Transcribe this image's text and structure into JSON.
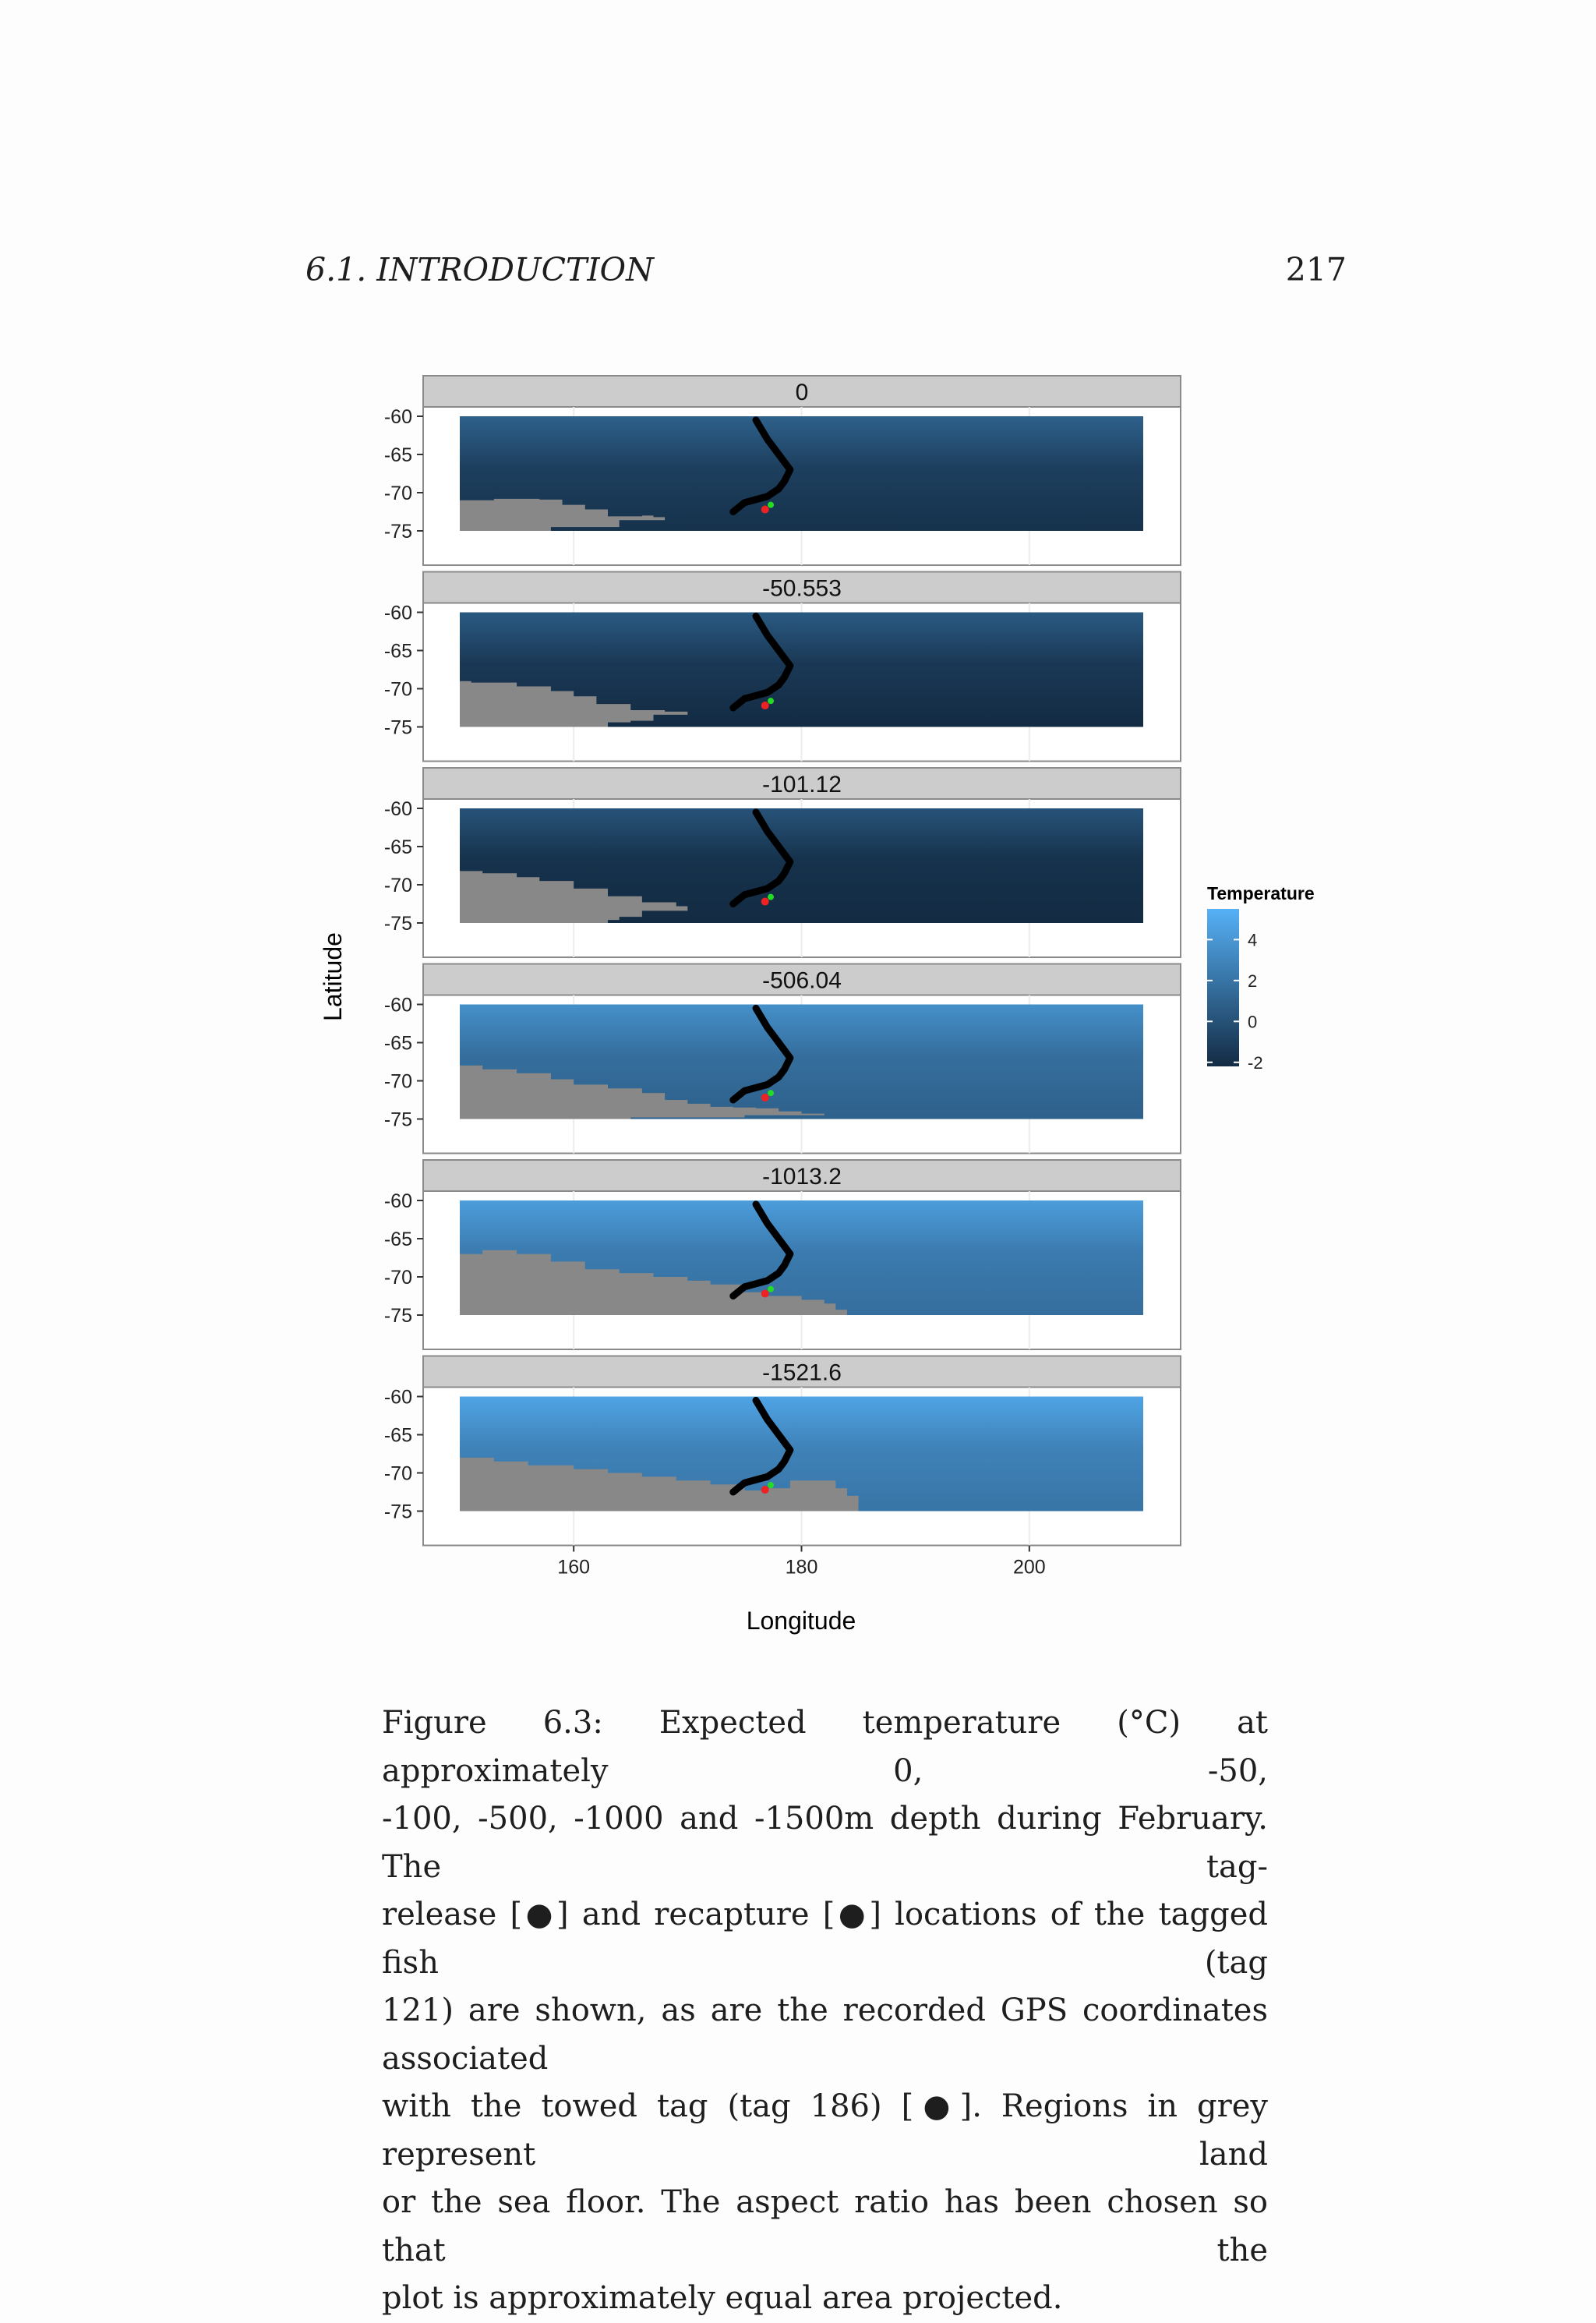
{
  "page": {
    "running_header": "6.1.  INTRODUCTION",
    "page_number": "217"
  },
  "chart_data": {
    "type": "heatmap",
    "panels": [
      {
        "label": "0",
        "depth": 0,
        "brightness": 0.1,
        "land": [
          [
            150,
            -71
          ],
          [
            153,
            -70.8
          ],
          [
            157,
            -70.9
          ],
          [
            159,
            -71.6
          ],
          [
            161,
            -72.2
          ],
          [
            163,
            -73.1
          ],
          [
            166,
            -73
          ],
          [
            167,
            -73.2
          ],
          [
            168,
            -73.6
          ],
          [
            164,
            -74.5
          ],
          [
            158,
            -75
          ]
        ]
      },
      {
        "label": "-50.553",
        "depth": -50.553,
        "brightness": 0.05,
        "land": [
          [
            150,
            -69
          ],
          [
            151,
            -69.2
          ],
          [
            155,
            -69.7
          ],
          [
            158,
            -70.3
          ],
          [
            160,
            -71
          ],
          [
            162,
            -72
          ],
          [
            165,
            -72.8
          ],
          [
            168,
            -73
          ],
          [
            170,
            -73.4
          ],
          [
            167,
            -74.2
          ],
          [
            165,
            -74.4
          ],
          [
            163,
            -75
          ]
        ]
      },
      {
        "label": "-101.12",
        "depth": -101.12,
        "brightness": 0.0,
        "land": [
          [
            150,
            -68.2
          ],
          [
            152,
            -68.5
          ],
          [
            155,
            -69
          ],
          [
            157,
            -69.5
          ],
          [
            160,
            -70.5
          ],
          [
            163,
            -71.5
          ],
          [
            166,
            -72.3
          ],
          [
            169,
            -72.8
          ],
          [
            170,
            -73.4
          ],
          [
            166,
            -74.2
          ],
          [
            164,
            -74.6
          ],
          [
            163,
            -75
          ]
        ]
      },
      {
        "label": "-506.04",
        "depth": -506.04,
        "brightness": 0.45,
        "land": [
          [
            150,
            -68
          ],
          [
            152,
            -68.5
          ],
          [
            155,
            -69
          ],
          [
            158,
            -69.8
          ],
          [
            160,
            -70.5
          ],
          [
            163,
            -71
          ],
          [
            166,
            -71.6
          ],
          [
            168,
            -72.5
          ],
          [
            170,
            -73
          ],
          [
            172,
            -73.4
          ],
          [
            174,
            -73.5
          ],
          [
            176,
            -73.6
          ],
          [
            178,
            -74
          ],
          [
            180,
            -74.3
          ],
          [
            182,
            -74.5
          ],
          [
            175,
            -74.8
          ],
          [
            165,
            -75
          ]
        ]
      },
      {
        "label": "-1013.2",
        "depth": -1013.2,
        "brightness": 0.55,
        "land": [
          [
            150,
            -67
          ],
          [
            152,
            -66.5
          ],
          [
            155,
            -67
          ],
          [
            158,
            -68
          ],
          [
            161,
            -69
          ],
          [
            164,
            -69.5
          ],
          [
            167,
            -70
          ],
          [
            170,
            -70.5
          ],
          [
            172,
            -71
          ],
          [
            175,
            -72
          ],
          [
            177,
            -72.5
          ],
          [
            180,
            -73
          ],
          [
            182,
            -73.5
          ],
          [
            183,
            -74.3
          ],
          [
            184,
            -75
          ]
        ]
      },
      {
        "label": "-1521.6",
        "depth": -1521.6,
        "brightness": 0.6,
        "land": [
          [
            150,
            -68
          ],
          [
            153,
            -68.5
          ],
          [
            156,
            -69
          ],
          [
            160,
            -69.5
          ],
          [
            163,
            -70
          ],
          [
            166,
            -70.5
          ],
          [
            169,
            -71
          ],
          [
            172,
            -71.5
          ],
          [
            175,
            -72.3
          ],
          [
            177,
            -72
          ],
          [
            179,
            -71
          ],
          [
            181,
            -71
          ],
          [
            183,
            -72
          ],
          [
            184,
            -73
          ],
          [
            185,
            -75
          ]
        ]
      }
    ],
    "x_ticks": [
      160,
      180,
      200
    ],
    "y_ticks": [
      -60,
      -65,
      -70,
      -75
    ],
    "xlim": [
      150,
      210
    ],
    "ylim": [
      -75,
      -60
    ],
    "xlabel": "Longitude",
    "ylabel": "Latitude",
    "legend": {
      "title": "Temperature",
      "ticks": [
        4,
        2,
        0,
        -2
      ],
      "position": "right",
      "colors": {
        "low": "#132b43",
        "high": "#56b1f7"
      }
    },
    "towed_track": [
      [
        176,
        -60.5
      ],
      [
        177,
        -63
      ],
      [
        178,
        -65
      ],
      [
        179,
        -67
      ],
      [
        178.5,
        -68.5
      ],
      [
        178,
        -69.5
      ],
      [
        177,
        -70.5
      ],
      [
        175,
        -71.3
      ],
      [
        174,
        -72.5
      ]
    ],
    "release_point": [
      177.3,
      -71.6
    ],
    "recapture_point": [
      176.8,
      -72.2
    ],
    "land_color": "#888888",
    "panel_strip_color": "#cccccc",
    "track_color": "#000000",
    "release_color": "#22dd22",
    "recapture_color": "#ee2222"
  },
  "caption": {
    "lines": [
      "Figure 6.3: Expected temperature (°C) at approximately 0, -50,",
      "-100, -500, -1000 and -1500m depth during February.  The tag-",
      "release [●] and recapture [●] locations of the tagged fish (tag",
      "121) are shown, as are the recorded GPS coordinates associated",
      "with the towed tag (tag 186) [●]. Regions in grey represent land",
      "or the sea floor.  The aspect ratio has been chosen so that the",
      "plot is approximately equal area projected."
    ]
  }
}
